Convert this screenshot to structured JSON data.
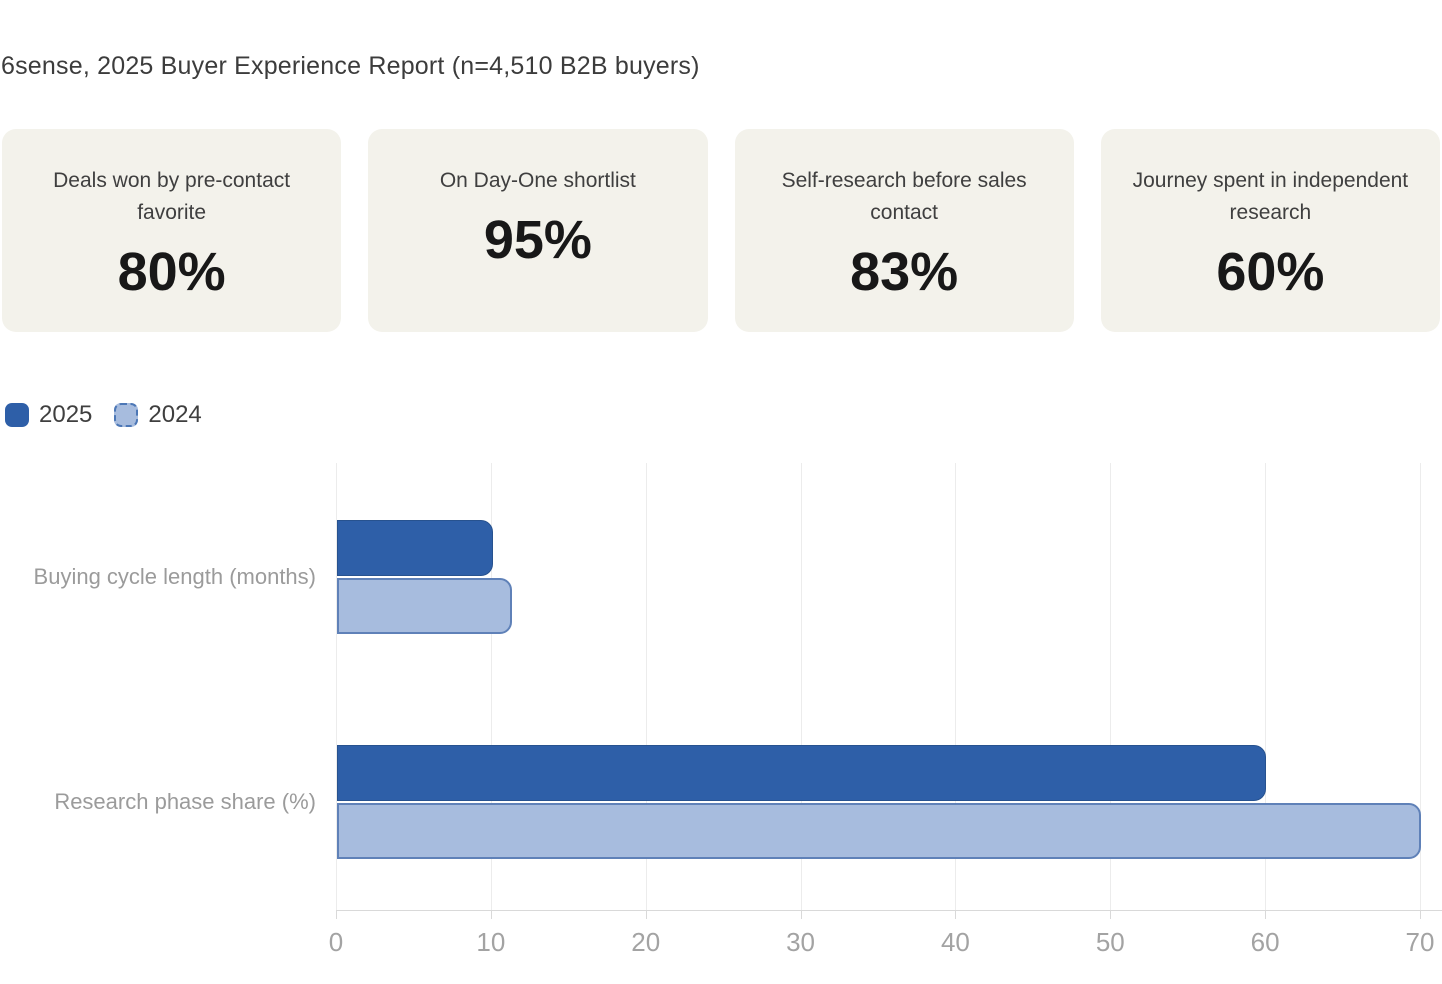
{
  "header": {
    "title": "6sense, 2025 Buyer Experience Report (n=4,510 B2B buyers)"
  },
  "cards": [
    {
      "label": "Deals won by pre-contact favorite",
      "value": "80%"
    },
    {
      "label": "On Day-One shortlist",
      "value": "95%"
    },
    {
      "label": "Self-research before sales contact",
      "value": "83%"
    },
    {
      "label": "Journey spent in independent research",
      "value": "60%"
    }
  ],
  "legend": {
    "items": [
      {
        "label": "2025",
        "style": "solid"
      },
      {
        "label": "2024",
        "style": "dashed"
      }
    ]
  },
  "chart_data": {
    "type": "bar",
    "orientation": "horizontal",
    "categories": [
      "Buying cycle length (months)",
      "Research phase share (%)"
    ],
    "series": [
      {
        "name": "2025",
        "values": [
          10.1,
          60
        ]
      },
      {
        "name": "2024",
        "values": [
          11.3,
          70
        ]
      }
    ],
    "xlim": [
      0,
      70
    ],
    "xticks": [
      0,
      10,
      20,
      30,
      40,
      50,
      60,
      70
    ],
    "grid": true,
    "legend_position": "top-left",
    "xlabel": "",
    "ylabel": ""
  },
  "colors": {
    "card_bg": "#F3F2EB",
    "title_text": "#3C3C3C",
    "card_label_text": "#3F3F3F",
    "card_value_text": "#181818",
    "series_2025": "#2E5FA8",
    "series_2025_border": "#27528F",
    "series_2024": "#A7BCDE",
    "series_2024_border": "#5F81B8",
    "legend_dash": "#4C77B6",
    "legend_text": "#3F3F3F",
    "category_label": "#9B9B9B",
    "tick_label": "#A3A3A3",
    "gridline": "#ECECEC",
    "axis_line": "#D9D9D9"
  }
}
